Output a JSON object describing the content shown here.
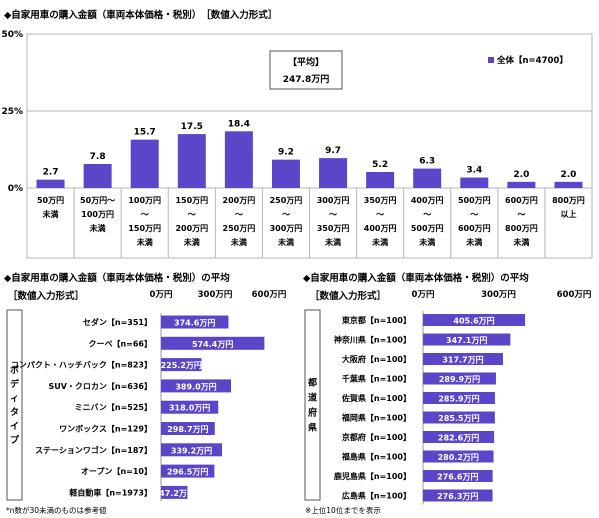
{
  "top": {
    "title": "◆自家用車の購入金額（車両本体価格・税別）　［数値入力形式］"
  },
  "left": {
    "title": "◆自家用車の購入金額（車両本体価格・税別）の平均",
    "subtitle": "［数値入力形式］",
    "footnote": "*n数が30未満のものは参考値"
  },
  "right": {
    "title": "◆自家用車の購入金額（車両本体価格・税別）の平均",
    "subtitle": "［数値入力形式］",
    "footnote": "※上位10位までを表示"
  },
  "chart_data": [
    {
      "type": "bar",
      "categories": [
        "50万円\n未満",
        "50万円～\n100万円\n未満",
        "100万円\n～\n150万円\n未満",
        "150万円\n～\n200万円\n未満",
        "200万円\n～\n250万円\n未満",
        "250万円\n～\n300万円\n未満",
        "300万円\n～\n350万円\n未満",
        "350万円\n～\n400万円\n未満",
        "400万円\n～\n500万円\n未満",
        "500万円\n～\n600万円\n未満",
        "600万円\n～\n800万円\n未満",
        "800万円\n以上"
      ],
      "values": [
        2.7,
        7.8,
        15.7,
        17.5,
        18.4,
        9.2,
        9.7,
        5.2,
        6.3,
        3.4,
        2.0,
        2.0
      ],
      "series": [
        {
          "name": "全体【n=4700】",
          "values": [
            2.7,
            7.8,
            15.7,
            17.5,
            18.4,
            9.2,
            9.7,
            5.2,
            6.3,
            3.4,
            2.0,
            2.0
          ]
        }
      ],
      "ylim": [
        0,
        50
      ],
      "yticks": [
        "0%",
        "25%",
        "50%"
      ],
      "legend": "top-right",
      "annotation": {
        "label": "【平均】",
        "value": "247.8万円"
      },
      "color": "#5b45c9"
    },
    {
      "type": "bar",
      "orientation": "horizontal",
      "group_label": "ボディタイプ",
      "categories": [
        "セダン【n=351】",
        "クーペ【n=66】",
        "コンパクト・ハッチバック【n=823】",
        "SUV・クロカン【n=636】",
        "ミニバン【n=525】",
        "ワンボックス【n=129】",
        "ステーションワゴン【n=187】",
        "オープン【n=10】",
        "軽自動車【n=1973】"
      ],
      "values": [
        374.6,
        574.4,
        225.2,
        389.0,
        318.0,
        298.7,
        339.2,
        296.5,
        147.2
      ],
      "labels": [
        "374.6万円",
        "574.4万円",
        "225.2万円",
        "389.0万円",
        "318.0万円",
        "298.7万円",
        "339.2万円",
        "296.5万円",
        "147.2万円"
      ],
      "xlim": [
        0,
        600
      ],
      "xticks": [
        "0万円",
        "300万円",
        "600万円"
      ],
      "color": "#5b45c9"
    },
    {
      "type": "bar",
      "orientation": "horizontal",
      "group_label": "都道府県",
      "categories": [
        "東京都【n=100】",
        "神奈川県【n=100】",
        "大阪府【n=100】",
        "千葉県【n=100】",
        "佐賀県【n=100】",
        "福岡県【n=100】",
        "京都府【n=100】",
        "福島県【n=100】",
        "鹿児島県【n=100】",
        "広島県【n=100】"
      ],
      "values": [
        405.6,
        347.1,
        317.7,
        289.9,
        285.9,
        285.5,
        282.6,
        280.2,
        276.6,
        276.3
      ],
      "labels": [
        "405.6万円",
        "347.1万円",
        "317.7万円",
        "289.9万円",
        "285.9万円",
        "285.5万円",
        "282.6万円",
        "280.2万円",
        "276.6万円",
        "276.3万円"
      ],
      "xlim": [
        0,
        600
      ],
      "xticks": [
        "0万円",
        "300万円",
        "600万円"
      ],
      "color": "#5b45c9"
    }
  ]
}
